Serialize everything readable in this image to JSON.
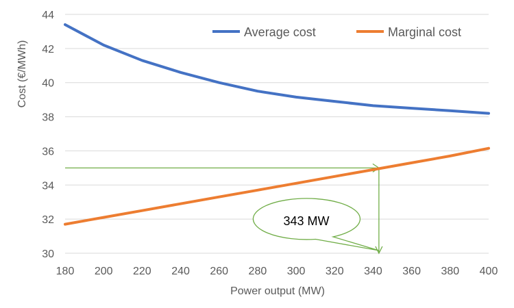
{
  "chart_data": {
    "type": "line",
    "xlabel": "Power output (MW)",
    "ylabel": "Cost (€/MWh)",
    "xlim": [
      180,
      400
    ],
    "ylim": [
      30,
      44
    ],
    "x_ticks": [
      180,
      200,
      220,
      240,
      260,
      280,
      300,
      320,
      340,
      360,
      380,
      400
    ],
    "y_ticks": [
      30,
      32,
      34,
      36,
      38,
      40,
      42,
      44
    ],
    "grid": "horizontal",
    "legend_position": "top-right",
    "x": [
      180,
      200,
      220,
      240,
      260,
      280,
      300,
      320,
      340,
      360,
      380,
      400
    ],
    "series": [
      {
        "name": "Average cost",
        "color": "#4472c4",
        "values": [
          43.4,
          42.2,
          41.3,
          40.6,
          40.0,
          39.5,
          39.15,
          38.9,
          38.65,
          38.5,
          38.35,
          38.2
        ]
      },
      {
        "name": "Marginal cost",
        "color": "#ed7d31",
        "values": [
          31.7,
          32.1,
          32.5,
          32.9,
          33.3,
          33.7,
          34.1,
          34.5,
          34.9,
          35.3,
          35.7,
          36.15
        ]
      }
    ],
    "annotation": {
      "label": "343 MW",
      "x": 343,
      "y": 35,
      "color": "#70ad47"
    }
  }
}
